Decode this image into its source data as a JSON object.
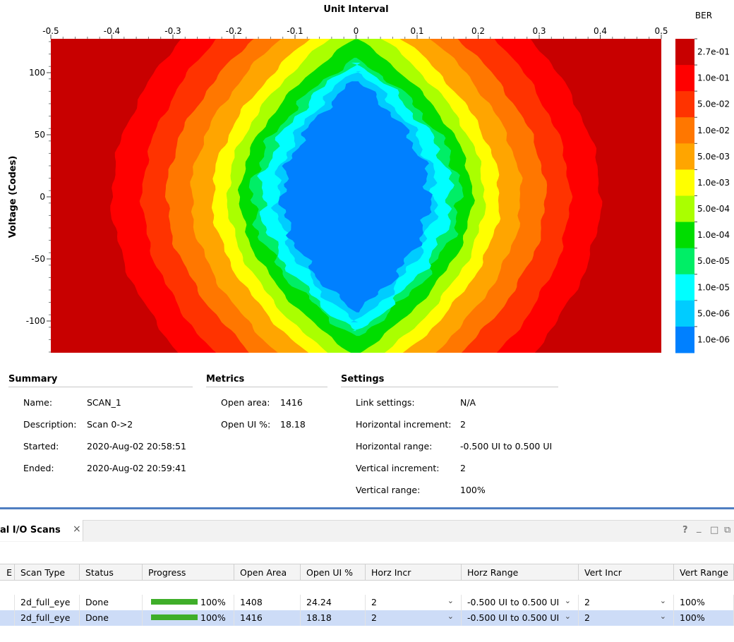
{
  "chart_data": {
    "type": "heatmap",
    "title": "",
    "xlabel": "Unit Interval",
    "ylabel": "Voltage (Codes)",
    "x_ticks": [
      "-0.5",
      "-0.4",
      "-0.3",
      "-0.2",
      "-0.1",
      "0",
      "0.1",
      "0.2",
      "0.3",
      "0.4",
      "0.5"
    ],
    "y_ticks": [
      "100",
      "50",
      "0",
      "-50",
      "-100"
    ],
    "xlim": [
      -0.5,
      0.5
    ],
    "ylim": [
      -127,
      127
    ],
    "legend_title": "BER",
    "legend": [
      {
        "label": "2.7e-01",
        "color": "#c80000"
      },
      {
        "label": "1.0e-01",
        "color": "#ff0000"
      },
      {
        "label": "5.0e-02",
        "color": "#ff3300"
      },
      {
        "label": "1.0e-02",
        "color": "#ff7700"
      },
      {
        "label": "5.0e-03",
        "color": "#ffa500"
      },
      {
        "label": "1.0e-03",
        "color": "#ffff00"
      },
      {
        "label": "5.0e-04",
        "color": "#aaff00"
      },
      {
        "label": "1.0e-04",
        "color": "#00dd00"
      },
      {
        "label": "5.0e-05",
        "color": "#00ee66"
      },
      {
        "label": "1.0e-05",
        "color": "#00ffff"
      },
      {
        "label": "5.0e-06",
        "color": "#00ccff"
      },
      {
        "label": "1.0e-06",
        "color": "#0080ff"
      }
    ],
    "contours": [
      {
        "level": "1.0e-01",
        "half_width_center": 0.4,
        "half_width_edge": 0.22,
        "half_height": 160
      },
      {
        "level": "5.0e-02",
        "half_width_center": 0.35,
        "half_width_edge": 0.18,
        "half_height": 150
      },
      {
        "level": "1.0e-02",
        "half_width_center": 0.31,
        "half_width_edge": 0.13,
        "half_height": 142
      },
      {
        "level": "5.0e-03",
        "half_width_center": 0.27,
        "half_width_edge": 0.1,
        "half_height": 136
      },
      {
        "level": "1.0e-03",
        "half_width_center": 0.235,
        "half_width_edge": 0.06,
        "half_height": 132
      },
      {
        "level": "5.0e-04",
        "half_width_center": 0.21,
        "half_width_edge": 0.035,
        "half_height": 129
      },
      {
        "level": "1.0e-04",
        "half_width_center": 0.19,
        "half_width_edge": 0.0,
        "half_height": 127
      },
      {
        "level": "5.0e-05",
        "half_width_center": 0.17,
        "half_width_edge": 0.0,
        "half_height": 112
      },
      {
        "level": "1.0e-05",
        "half_width_center": 0.155,
        "half_width_edge": 0.0,
        "half_height": 108
      },
      {
        "level": "5.0e-06",
        "half_width_center": 0.13,
        "half_width_edge": 0.0,
        "half_height": 101
      },
      {
        "level": "1.0e-06",
        "half_width_center": 0.12,
        "half_width_edge": 0.0,
        "half_height": 93
      }
    ]
  },
  "summary": {
    "title": "Summary",
    "name_label": "Name:",
    "name": "SCAN_1",
    "description_label": "Description:",
    "description": "Scan 0->2",
    "started_label": "Started:",
    "started": "2020-Aug-02 20:58:51",
    "ended_label": "Ended:",
    "ended": "2020-Aug-02 20:59:41"
  },
  "metrics": {
    "title": "Metrics",
    "open_area_label": "Open area:",
    "open_area": "1416",
    "open_ui_label": "Open UI %:",
    "open_ui": "18.18"
  },
  "settings": {
    "title": "Settings",
    "link_label": "Link settings:",
    "link": "N/A",
    "h_incr_label": "Horizontal increment:",
    "h_incr": "2",
    "h_range_label": "Horizontal range:",
    "h_range": "-0.500 UI to 0.500 UI",
    "v_incr_label": "Vertical increment:",
    "v_incr": "2",
    "v_range_label": "Vertical range:",
    "v_range": "100%"
  },
  "panel": {
    "tab_label": "al I/O Scans",
    "close_glyph": "×",
    "help_glyph": "?",
    "minimize_glyph": "_",
    "maximize_glyph": "□",
    "float_glyph": "⧉"
  },
  "table": {
    "headers": {
      "id": "E",
      "scan_type": "Scan Type",
      "status": "Status",
      "progress": "Progress",
      "open_area": "Open Area",
      "open_ui": "Open UI %",
      "horz_incr": "Horz Incr",
      "horz_range": "Horz Range",
      "vert_incr": "Vert Incr",
      "vert_range": "Vert Range"
    },
    "rows": [
      {
        "scan_type": "2d_full_eye",
        "status": "Done",
        "progress": 1.0,
        "progress_text": "100%",
        "open_area": "1408",
        "open_ui": "24.24",
        "horz_incr": "2",
        "horz_range": "-0.500 UI to 0.500 UI",
        "vert_incr": "2",
        "vert_range": "100%"
      },
      {
        "scan_type": "2d_full_eye",
        "status": "Done",
        "progress": 1.0,
        "progress_text": "100%",
        "open_area": "1416",
        "open_ui": "18.18",
        "horz_incr": "2",
        "horz_range": "-0.500 UI to 0.500 UI",
        "vert_incr": "2",
        "vert_range": "100%"
      }
    ],
    "selected_row_color": "#cddcf7",
    "progress_color": "#3fae29"
  }
}
